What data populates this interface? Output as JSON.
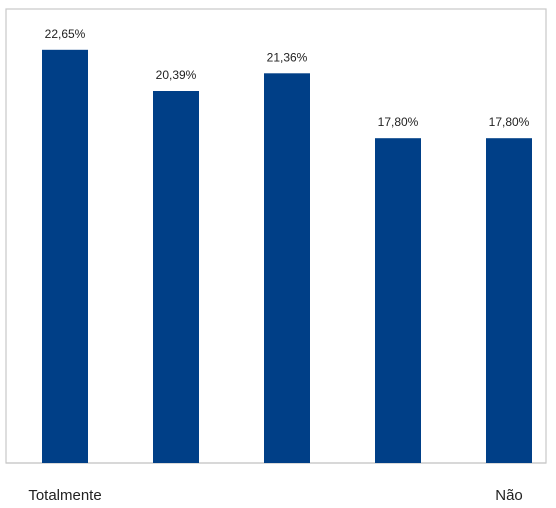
{
  "chart_data": {
    "type": "bar",
    "categories": [
      "Totalmente",
      "",
      "",
      "",
      "Não"
    ],
    "values": [
      22.65,
      20.39,
      21.36,
      17.8,
      17.8
    ],
    "data_labels": [
      "22,65%",
      "20,39%",
      "21,36%",
      "17,80%",
      "17,80%"
    ],
    "ylim": [
      0,
      24.5
    ],
    "grid": false,
    "legend": "none",
    "bar_color": "#003F87",
    "frame_color": "#C8C8C8"
  }
}
